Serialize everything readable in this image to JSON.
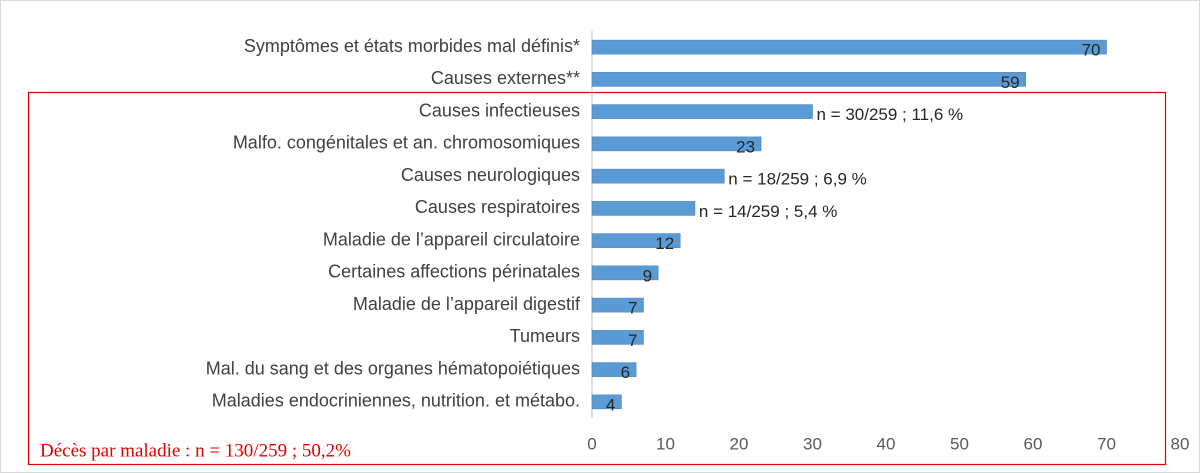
{
  "chart_data": {
    "type": "barh",
    "categories": [
      "Symptômes et états morbides mal définis*",
      "Causes externes**",
      "Causes infectieuses",
      "Malfo. congénitales et an. chromosomiques",
      "Causes neurologiques",
      "Causes respiratoires",
      "Maladie de l’appareil circulatoire",
      "Certaines affections périnatales",
      "Maladie de l’appareil digestif",
      "Tumeurs",
      "Mal. du sang et des organes hématopoiétiques",
      "Maladies endocriniennes, nutrition. et métabo."
    ],
    "values": [
      70,
      59,
      30,
      23,
      18,
      14,
      12,
      9,
      7,
      7,
      6,
      4
    ],
    "value_labels": [
      "70",
      "59",
      "n = 30/259 ; 11,6 %",
      "23",
      "n = 18/259 ; 6,9 %",
      "n = 14/259 ; 5,4 %",
      "12",
      "9",
      "7",
      "7",
      "6",
      "4"
    ],
    "color": "#5b9bd5",
    "xlim": [
      0,
      80
    ],
    "xticks": [
      0,
      10,
      20,
      30,
      40,
      50,
      60,
      70,
      80
    ],
    "grid": false,
    "annotation": "Décès par maladie : n = 130/259 ; 50,2%"
  }
}
